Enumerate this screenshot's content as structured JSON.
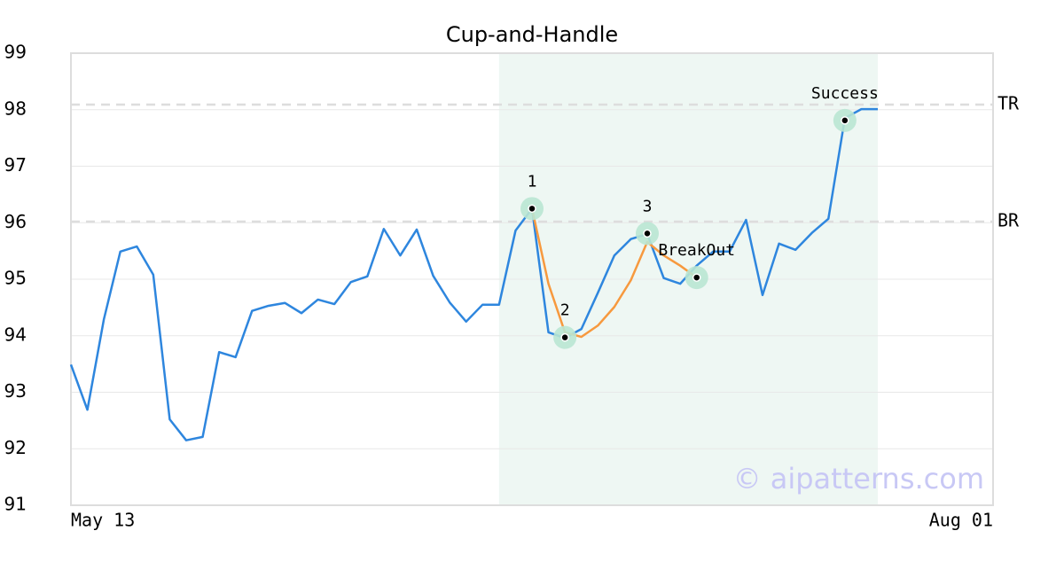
{
  "chart_data": {
    "type": "line",
    "title": "Cup-and-Handle",
    "categories": [
      "May 13",
      null,
      null,
      null,
      null,
      null,
      null,
      null,
      null,
      null,
      null,
      null,
      null,
      null,
      null,
      null,
      null,
      null,
      null,
      null,
      null,
      null,
      null,
      null,
      null,
      null,
      null,
      null,
      null,
      null,
      null,
      null,
      null,
      null,
      null,
      null,
      null,
      null,
      null,
      null,
      null,
      null,
      null,
      null,
      null,
      null,
      null,
      null,
      null,
      null,
      null,
      null,
      null,
      null,
      null,
      null,
      "Aug 01"
    ],
    "series": [
      {
        "color": "#2e86de",
        "values": [
          93.49,
          92.69,
          94.29,
          95.49,
          95.58,
          95.08,
          92.52,
          92.15,
          92.21,
          93.71,
          93.62,
          94.44,
          94.53,
          94.58,
          94.4,
          94.64,
          94.56,
          94.95,
          95.05,
          95.89,
          95.42,
          95.88,
          95.06,
          94.59,
          94.25,
          94.55,
          94.55,
          95.86,
          96.25,
          94.06,
          93.96,
          94.12,
          94.76,
          95.42,
          95.71,
          95.8,
          95.02,
          94.92,
          95.24,
          95.49,
          95.49,
          96.05,
          94.72,
          95.63,
          95.52,
          95.82,
          96.07,
          97.85,
          98.01,
          98.01,
          null,
          null,
          null,
          null,
          null,
          null,
          null
        ]
      },
      {
        "color": "#f7993e",
        "values": [
          null,
          null,
          null,
          null,
          null,
          null,
          null,
          null,
          null,
          null,
          null,
          null,
          null,
          null,
          null,
          null,
          null,
          null,
          null,
          null,
          null,
          null,
          null,
          null,
          null,
          null,
          null,
          null,
          96.25,
          94.92,
          94.06,
          93.98,
          94.18,
          94.51,
          94.98,
          95.66,
          95.42,
          95.24,
          95.03,
          null,
          null,
          null,
          null,
          null,
          null,
          null,
          null,
          null,
          null,
          null,
          null,
          null,
          null,
          null,
          null,
          null,
          null
        ]
      }
    ],
    "markers": {
      "color": "#b9e6d3",
      "values": [
        null,
        null,
        null,
        null,
        null,
        null,
        null,
        null,
        null,
        null,
        null,
        null,
        null,
        null,
        null,
        null,
        null,
        null,
        null,
        null,
        null,
        null,
        null,
        null,
        null,
        null,
        null,
        null,
        96.25,
        null,
        93.97,
        null,
        null,
        null,
        null,
        95.81,
        null,
        null,
        95.03,
        null,
        null,
        null,
        null,
        null,
        null,
        null,
        null,
        97.81,
        null,
        null,
        null,
        null,
        null,
        null,
        null,
        null,
        null
      ],
      "labels": [
        null,
        null,
        null,
        null,
        null,
        null,
        null,
        null,
        null,
        null,
        null,
        null,
        null,
        null,
        null,
        null,
        null,
        null,
        null,
        null,
        null,
        null,
        null,
        null,
        null,
        null,
        null,
        null,
        "1",
        null,
        "2",
        null,
        null,
        null,
        null,
        "3",
        null,
        null,
        "BreakOut",
        null,
        null,
        null,
        null,
        null,
        null,
        null,
        null,
        "Success",
        null,
        null,
        null,
        null,
        null,
        null,
        null,
        null,
        null
      ]
    },
    "shade_span": [
      26,
      49
    ],
    "shade_color": "#eef7f3",
    "hlines": [
      {
        "label": "TR",
        "value": 98.09
      },
      {
        "label": "BR",
        "value": 96.02
      }
    ],
    "watermark": "© aipatterns.com",
    "ylim": [
      91,
      99
    ],
    "yticks": [
      91,
      92,
      93,
      94,
      95,
      96,
      97,
      98,
      99
    ],
    "grid": true
  }
}
